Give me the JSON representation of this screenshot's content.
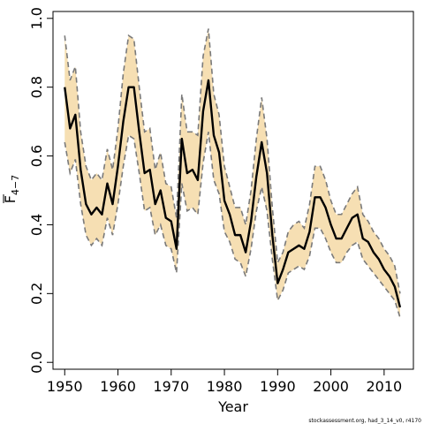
{
  "chart_data": {
    "type": "line",
    "title": "",
    "xlabel": "Year",
    "ylabel": "F̄ 4−7",
    "ylabel_main": "F",
    "ylabel_sub": "4−7",
    "xlim": [
      1947.8,
      2015.5
    ],
    "ylim": [
      -0.02,
      1.02
    ],
    "x_ticks": [
      1950,
      1960,
      1970,
      1980,
      1990,
      2000,
      2010
    ],
    "y_ticks": [
      0.0,
      0.2,
      0.4,
      0.6,
      0.8,
      1.0
    ],
    "y_tick_labels": [
      "0.0",
      "0.2",
      "0.4",
      "0.6",
      "0.8",
      "1.0"
    ],
    "grid": false,
    "legend": "none",
    "colors": {
      "band": "#f6dfb3",
      "bound_line": "#7a7a7a",
      "estimate_line": "#000000"
    },
    "series": [
      {
        "role": "estimate",
        "x": [
          1950,
          1951,
          1952,
          1953,
          1954,
          1955,
          1956,
          1957,
          1958,
          1959,
          1960,
          1961,
          1962,
          1963,
          1964,
          1965,
          1966,
          1967,
          1968,
          1969,
          1970,
          1971,
          1972,
          1973,
          1974,
          1975,
          1976,
          1977,
          1978,
          1979,
          1980,
          1981,
          1982,
          1983,
          1984,
          1985,
          1986,
          1987,
          1988,
          1989,
          1990,
          1991,
          1992,
          1993,
          1994,
          1995,
          1996,
          1997,
          1998,
          1999,
          2000,
          2001,
          2002,
          2003,
          2004,
          2005,
          2006,
          2007,
          2008,
          2009,
          2010,
          2011,
          2012,
          2013
        ],
        "y": [
          0.8,
          0.68,
          0.72,
          0.56,
          0.46,
          0.43,
          0.45,
          0.43,
          0.52,
          0.46,
          0.57,
          0.7,
          0.8,
          0.8,
          0.67,
          0.55,
          0.56,
          0.46,
          0.5,
          0.42,
          0.41,
          0.33,
          0.65,
          0.55,
          0.56,
          0.53,
          0.73,
          0.82,
          0.66,
          0.61,
          0.47,
          0.43,
          0.37,
          0.37,
          0.32,
          0.41,
          0.54,
          0.64,
          0.55,
          0.37,
          0.23,
          0.27,
          0.32,
          0.33,
          0.34,
          0.33,
          0.38,
          0.48,
          0.48,
          0.45,
          0.4,
          0.36,
          0.36,
          0.39,
          0.42,
          0.43,
          0.36,
          0.35,
          0.32,
          0.3,
          0.27,
          0.25,
          0.22,
          0.16
        ]
      },
      {
        "role": "upper",
        "x": [
          1950,
          1951,
          1952,
          1953,
          1954,
          1955,
          1956,
          1957,
          1958,
          1959,
          1960,
          1961,
          1962,
          1963,
          1964,
          1965,
          1966,
          1967,
          1968,
          1969,
          1970,
          1971,
          1972,
          1973,
          1974,
          1975,
          1976,
          1977,
          1978,
          1979,
          1980,
          1981,
          1982,
          1983,
          1984,
          1985,
          1986,
          1987,
          1988,
          1989,
          1990,
          1991,
          1992,
          1993,
          1994,
          1995,
          1996,
          1997,
          1998,
          1999,
          2000,
          2001,
          2002,
          2003,
          2004,
          2005,
          2006,
          2007,
          2008,
          2009,
          2010,
          2011,
          2012,
          2013
        ],
        "y": [
          0.95,
          0.82,
          0.86,
          0.67,
          0.57,
          0.53,
          0.55,
          0.53,
          0.62,
          0.56,
          0.68,
          0.84,
          0.95,
          0.94,
          0.8,
          0.67,
          0.68,
          0.56,
          0.61,
          0.52,
          0.51,
          0.42,
          0.78,
          0.67,
          0.67,
          0.66,
          0.89,
          0.97,
          0.78,
          0.72,
          0.57,
          0.51,
          0.45,
          0.45,
          0.4,
          0.5,
          0.65,
          0.77,
          0.65,
          0.45,
          0.29,
          0.32,
          0.38,
          0.4,
          0.41,
          0.39,
          0.46,
          0.57,
          0.57,
          0.53,
          0.47,
          0.43,
          0.43,
          0.46,
          0.49,
          0.51,
          0.43,
          0.41,
          0.38,
          0.36,
          0.33,
          0.31,
          0.28,
          0.2
        ]
      },
      {
        "role": "lower",
        "x": [
          1950,
          1951,
          1952,
          1953,
          1954,
          1955,
          1956,
          1957,
          1958,
          1959,
          1960,
          1961,
          1962,
          1963,
          1964,
          1965,
          1966,
          1967,
          1968,
          1969,
          1970,
          1971,
          1972,
          1973,
          1974,
          1975,
          1976,
          1977,
          1978,
          1979,
          1980,
          1981,
          1982,
          1983,
          1984,
          1985,
          1986,
          1987,
          1988,
          1989,
          1990,
          1991,
          1992,
          1993,
          1994,
          1995,
          1996,
          1997,
          1998,
          1999,
          2000,
          2001,
          2002,
          2003,
          2004,
          2005,
          2006,
          2007,
          2008,
          2009,
          2010,
          2011,
          2012,
          2013
        ],
        "y": [
          0.64,
          0.55,
          0.59,
          0.46,
          0.37,
          0.34,
          0.36,
          0.34,
          0.42,
          0.37,
          0.46,
          0.57,
          0.66,
          0.65,
          0.55,
          0.44,
          0.45,
          0.37,
          0.4,
          0.34,
          0.33,
          0.26,
          0.52,
          0.44,
          0.45,
          0.43,
          0.58,
          0.67,
          0.53,
          0.49,
          0.38,
          0.35,
          0.3,
          0.29,
          0.25,
          0.33,
          0.44,
          0.51,
          0.44,
          0.3,
          0.18,
          0.21,
          0.26,
          0.27,
          0.28,
          0.27,
          0.31,
          0.39,
          0.39,
          0.36,
          0.32,
          0.29,
          0.29,
          0.32,
          0.34,
          0.35,
          0.3,
          0.28,
          0.26,
          0.24,
          0.22,
          0.2,
          0.18,
          0.13
        ]
      }
    ],
    "footnote": "stockassessment.org, had_3_14_v0, r4170"
  }
}
